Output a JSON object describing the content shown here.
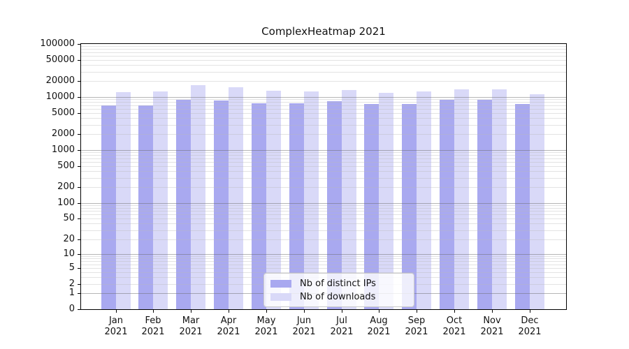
{
  "chart_data": {
    "type": "bar",
    "title": "ComplexHeatmap 2021",
    "categories": [
      "Jan 2021",
      "Feb 2021",
      "Mar 2021",
      "Apr 2021",
      "May 2021",
      "Jun 2021",
      "Jul 2021",
      "Aug 2021",
      "Sep 2021",
      "Oct 2021",
      "Nov 2021",
      "Dec 2021"
    ],
    "series": [
      {
        "name": "Nb of distinct IPs",
        "color": "#a9a9f0",
        "values": [
          6900,
          7000,
          8900,
          8500,
          7700,
          7700,
          8300,
          7300,
          7400,
          8800,
          8900,
          7400
        ]
      },
      {
        "name": "Nb of downloads",
        "color": "#d9d9f8",
        "values": [
          12500,
          12900,
          16500,
          15100,
          13000,
          12800,
          13500,
          12100,
          12700,
          13800,
          14100,
          11300
        ]
      }
    ],
    "y_scale": "log10(1+v)",
    "y_ticks": [
      0,
      1,
      2,
      5,
      10,
      20,
      50,
      100,
      200,
      500,
      1000,
      2000,
      5000,
      10000,
      20000,
      50000,
      100000
    ],
    "ylim": [
      0,
      100000
    ],
    "xlabel": "",
    "ylabel": "",
    "grid": "horizontal, major at powers of 10 and minor at 2-9 per decade, drawn over bars",
    "legend_position": "inside bottom-center",
    "colors": {
      "bar_distinct_ips": "#a9a9f0",
      "bar_downloads": "#d9d9f8",
      "frame": "#000000",
      "grid_major": "#6e6e6e",
      "grid_minor": "#b9b9b9",
      "text": "#111111",
      "legend_border": "#cbcbcb"
    }
  }
}
